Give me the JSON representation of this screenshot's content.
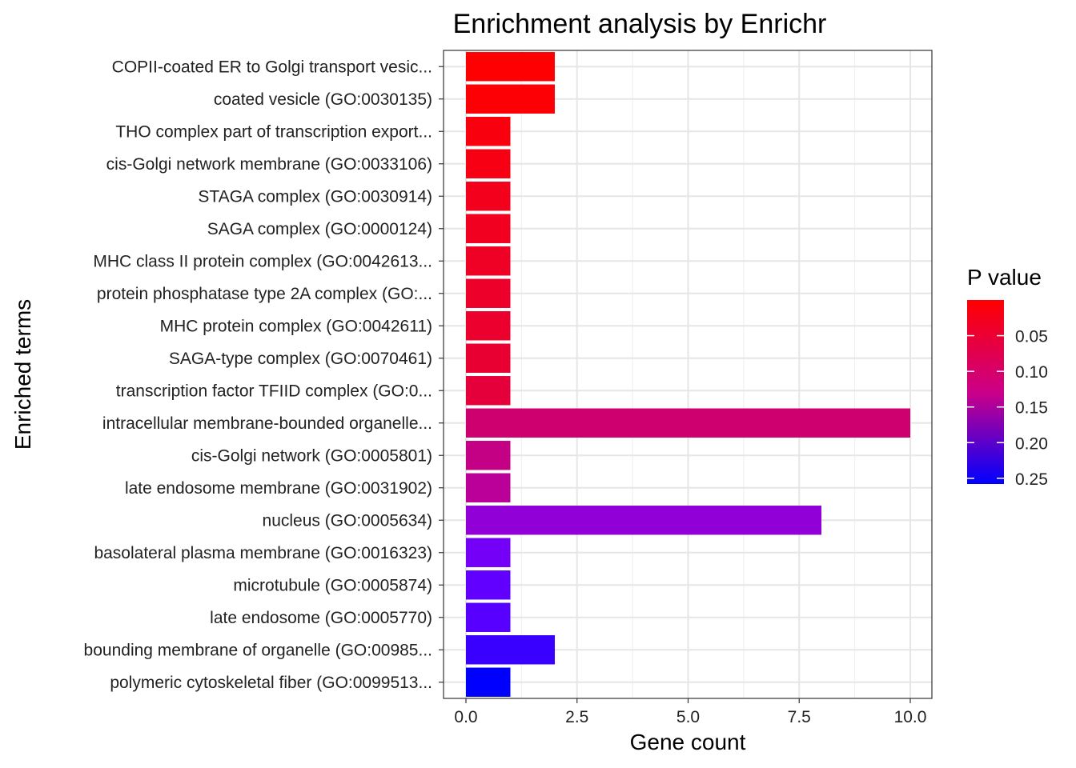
{
  "chart_data": {
    "type": "bar",
    "orientation": "horizontal",
    "title": "Enrichment analysis by Enrichr",
    "xlabel": "Gene count",
    "ylabel": "Enriched terms",
    "xlim": [
      0,
      10.5
    ],
    "x_ticks": [
      0,
      2.5,
      5,
      7.5,
      10
    ],
    "x_tick_labels": [
      "0.0",
      "2.5",
      "5.0",
      "7.5",
      "10.0"
    ],
    "grid": true,
    "categories": [
      "COPII-coated ER to Golgi transport vesic...",
      "coated vesicle (GO:0030135)",
      "THO complex part of transcription export...",
      "cis-Golgi network membrane (GO:0033106)",
      "STAGA complex (GO:0030914)",
      "SAGA complex (GO:0000124)",
      "MHC class II protein complex (GO:0042613...",
      "protein phosphatase type 2A complex (GO:...",
      "MHC protein complex (GO:0042611)",
      "SAGA-type complex (GO:0070461)",
      "transcription factor TFIID complex (GO:0...",
      "intracellular membrane-bounded organelle...",
      "cis-Golgi network (GO:0005801)",
      "late endosome membrane (GO:0031902)",
      "nucleus (GO:0005634)",
      "basolateral plasma membrane (GO:0016323)",
      "microtubule (GO:0005874)",
      "late endosome (GO:0005770)",
      "bounding membrane of organelle (GO:00985...",
      "polymeric cytoskeletal fiber (GO:0099513..."
    ],
    "values": [
      2,
      2,
      1,
      1,
      1,
      1,
      1,
      1,
      1,
      1,
      1,
      10,
      1,
      1,
      8,
      1,
      1,
      1,
      2,
      1
    ],
    "p_values": [
      0.001,
      0.002,
      0.006,
      0.008,
      0.012,
      0.014,
      0.016,
      0.018,
      0.02,
      0.022,
      0.026,
      0.05,
      0.06,
      0.07,
      0.11,
      0.14,
      0.16,
      0.17,
      0.2,
      0.26
    ],
    "legend": {
      "title": "P value",
      "position": "right",
      "breaks": [
        0.05,
        0.1,
        0.15,
        0.2,
        0.25
      ],
      "labels": [
        "0.05",
        "0.10",
        "0.15",
        "0.20",
        "0.25"
      ],
      "range": [
        0.0,
        0.258
      ],
      "low_color": "#ff0000",
      "high_color": "#0000ff"
    }
  }
}
